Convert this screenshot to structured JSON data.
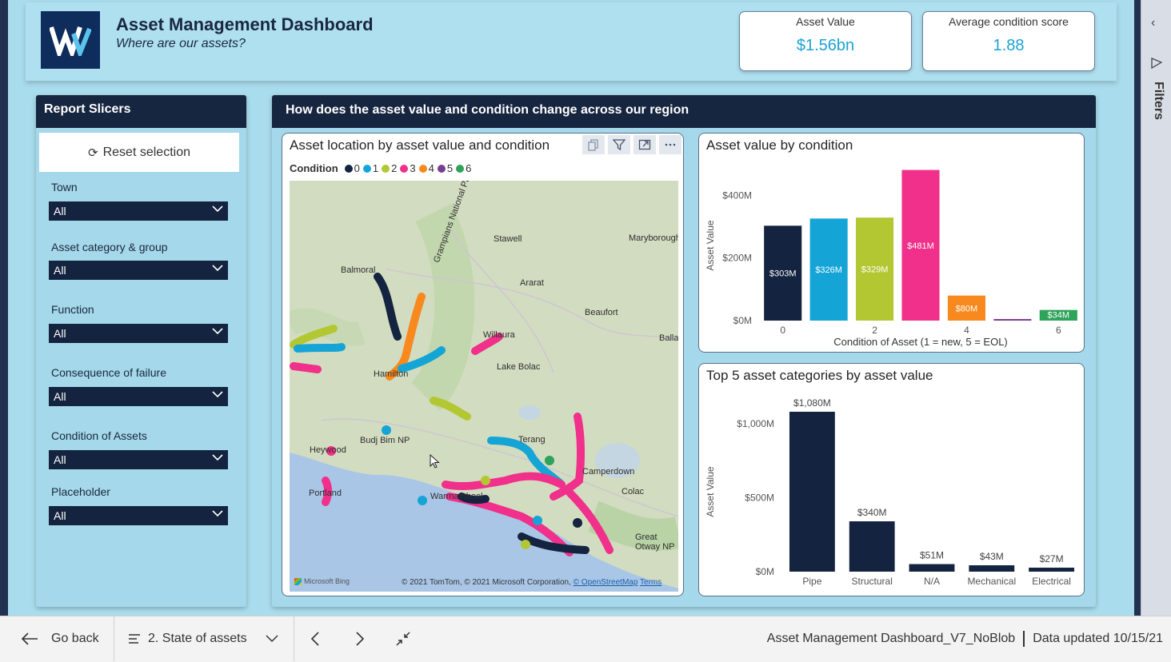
{
  "header": {
    "title": "Asset Management Dashboard",
    "subtitle": "Where are our assets?",
    "kpis": [
      {
        "label": "Asset Value",
        "value": "$1.56bn"
      },
      {
        "label": "Average condition score",
        "value": "1.88"
      }
    ]
  },
  "slicers": {
    "title": "Report Slicers",
    "reset_label": "Reset selection",
    "items": [
      {
        "label": "Town",
        "value": "All"
      },
      {
        "label": "Asset category & group",
        "value": "All"
      },
      {
        "label": "Function",
        "value": "All"
      },
      {
        "label": "Consequence of failure",
        "value": "All"
      },
      {
        "label": "Condition of Assets",
        "value": "All"
      },
      {
        "label": "Placeholder",
        "value": "All"
      }
    ]
  },
  "main": {
    "title": "How does the asset value and condition change across our region",
    "map": {
      "title": "Asset location by asset value and condition",
      "legend_title": "Condition",
      "legend": [
        {
          "label": "0",
          "color": "#14233f"
        },
        {
          "label": "1",
          "color": "#14a5d6"
        },
        {
          "label": "2",
          "color": "#b3c733"
        },
        {
          "label": "3",
          "color": "#f0308a"
        },
        {
          "label": "4",
          "color": "#f7891e"
        },
        {
          "label": "5",
          "color": "#7a3e91"
        },
        {
          "label": "6",
          "color": "#2ea35a"
        }
      ],
      "places": [
        "Stawell",
        "Maryborough",
        "Balmoral",
        "Ararat",
        "Beaufort",
        "Ballarat",
        "Willaura",
        "Lake Bolac",
        "Hamilton",
        "Budj Bim NP",
        "Heywood",
        "Portland",
        "Camperdown",
        "Terang",
        "Warrnambool",
        "Colac",
        "Great Otway NP",
        "Grampians National Park"
      ],
      "bing_label": "Microsoft Bing",
      "copyright": "© 2021 TomTom, © 2021 Microsoft Corporation, ",
      "osm": "© OpenStreetMap",
      "terms": "Terms"
    }
  },
  "chart_data": [
    {
      "type": "bar",
      "title": "Asset value by condition",
      "categories": [
        "0",
        "1",
        "2",
        "3",
        "4",
        "5",
        "6"
      ],
      "tick_labels": [
        "0",
        "",
        "2",
        "",
        "4",
        "",
        "6"
      ],
      "values": [
        303,
        326,
        329,
        481,
        80,
        5,
        34
      ],
      "data_labels": [
        "$303M",
        "$326M",
        "$329M",
        "$481M",
        "$80M",
        "",
        "$34M"
      ],
      "colors": [
        "#14233f",
        "#14a5d6",
        "#b3c733",
        "#f0308a",
        "#f7891e",
        "#7a3e91",
        "#2ea35a"
      ],
      "xlabel": "Condition of Asset (1 = new, 5 = EOL)",
      "ylabel": "Asset Value",
      "yticks": [
        "$0M",
        "$200M",
        "$400M"
      ],
      "ytick_values": [
        0,
        200,
        400
      ],
      "ylim": [
        0,
        480
      ]
    },
    {
      "type": "bar",
      "title": "Top 5 asset categories by asset value",
      "categories": [
        "Pipe",
        "Structural",
        "N/A",
        "Mechanical",
        "Electrical"
      ],
      "values": [
        1080,
        340,
        51,
        43,
        27
      ],
      "data_labels": [
        "$1,080M",
        "$340M",
        "$51M",
        "$43M",
        "$27M"
      ],
      "color": "#14233f",
      "xlabel": "",
      "ylabel": "Asset Value",
      "yticks": [
        "$0M",
        "$500M",
        "$1,000M"
      ],
      "ytick_values": [
        0,
        500,
        1000
      ],
      "ylim": [
        0,
        1080
      ]
    }
  ],
  "bottombar": {
    "back_label": "Go back",
    "page_label": "2. State of assets",
    "file_name": "Asset Management Dashboard_V7_NoBlob",
    "data_updated": "Data updated 10/15/21"
  },
  "filters_pane": {
    "label": "Filters"
  }
}
